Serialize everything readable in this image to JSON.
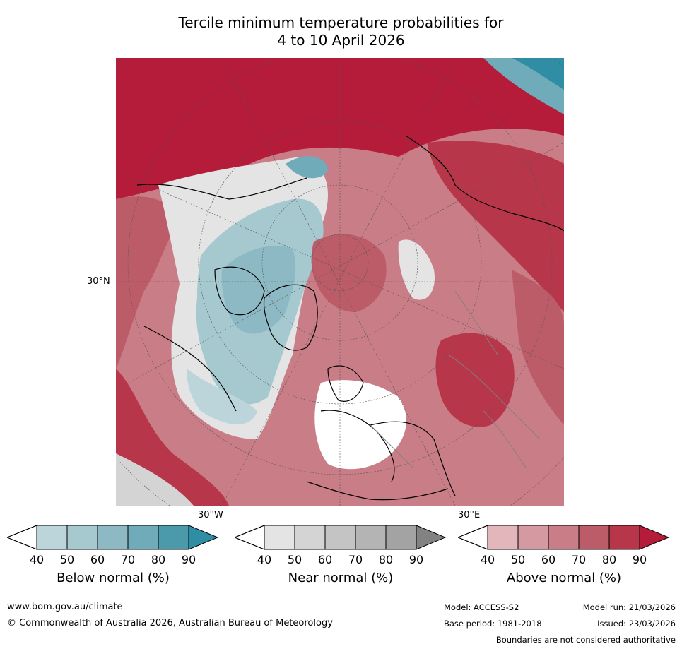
{
  "title": {
    "line1": "Tercile minimum temperature probabilities for",
    "line2": "4 to 10 April 2026"
  },
  "map": {
    "lat_label": "30°N",
    "lon_left_label": "30°W",
    "lon_right_label": "30°E",
    "legend_ticks": [
      "40",
      "50",
      "60",
      "70",
      "80",
      "90"
    ]
  },
  "colorbars": [
    {
      "label": "Below normal (%)",
      "colors": [
        "#bcd5da",
        "#a6c8cf",
        "#8cb9c4",
        "#6fabb8",
        "#4b9aac",
        "#2f8ea4"
      ]
    },
    {
      "label": "Near normal (%)",
      "colors": [
        "#e4e4e4",
        "#d4d4d4",
        "#c4c4c4",
        "#b4b4b4",
        "#a3a3a3",
        "#828282"
      ]
    },
    {
      "label": "Above normal (%)",
      "colors": [
        "#e3b6bb",
        "#d59aa1",
        "#c97d87",
        "#bc5c69",
        "#b8364a",
        "#b41c3a"
      ]
    }
  ],
  "footer": {
    "website": "www.bom.gov.au/climate",
    "copyright": "© Commonwealth of Australia 2026, Australian Bureau of Meteorology",
    "model": "Model: ACCESS-S2",
    "base_period": "Base period: 1981-2018",
    "model_run": "Model run: 21/03/2026",
    "issued": "Issued: 23/03/2026",
    "disclaimer": "Boundaries are not considered authoritative"
  }
}
